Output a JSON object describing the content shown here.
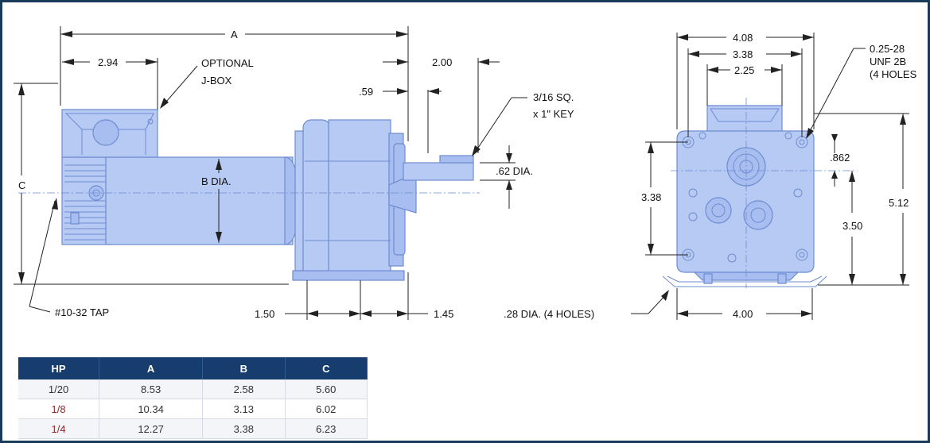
{
  "side_view": {
    "dim_a": "A",
    "dim_294": "2.94",
    "optional_jbox_line1": "OPTIONAL",
    "optional_jbox_line2": "J-BOX",
    "dim_c": "C",
    "b_dia": "B DIA.",
    "dim_059": ".59",
    "dim_200": "2.00",
    "key_line1": "3/16 SQ.",
    "key_line2": "x 1\" KEY",
    "shaft_dia": ".62 DIA.",
    "tap": "#10-32 TAP",
    "dim_150": "1.50",
    "dim_145": "1.45"
  },
  "end_view": {
    "dim_408": "4.08",
    "dim_338_top": "3.38",
    "dim_225": "2.25",
    "thread_line1": "0.25-28",
    "thread_line2": "UNF 2B",
    "thread_line3": "(4 HOLES",
    "dim_0862": ".862",
    "dim_338_left": "3.38",
    "dim_512": "5.12",
    "dim_350": "3.50",
    "mount_holes": ".28 DIA. (4 HOLES)",
    "dim_400": "4.00"
  },
  "table": {
    "headers": [
      "HP",
      "A",
      "B",
      "C"
    ],
    "rows": [
      [
        "1/20",
        "8.53",
        "2.58",
        "5.60"
      ],
      [
        "1/8",
        "10.34",
        "3.13",
        "6.02"
      ],
      [
        "1/4",
        "12.27",
        "3.38",
        "6.23"
      ]
    ]
  },
  "colors": {
    "frame": "#1a3a5c",
    "header": "#163d6e",
    "part_fill": "#b7caf3",
    "part_stroke": "#6d8cd0"
  }
}
